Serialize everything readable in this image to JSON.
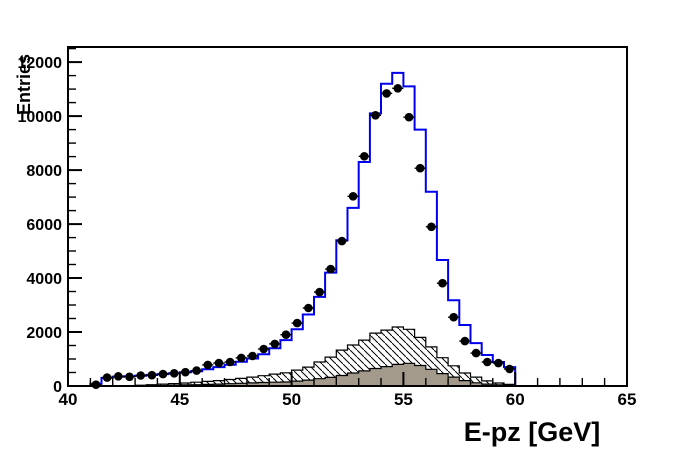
{
  "page": {
    "background": "#ffffff"
  },
  "chart_data": {
    "type": "histogram",
    "title": "",
    "xlabel": "E-pz [GeV]",
    "ylabel": "Entries",
    "xlim": [
      40,
      65
    ],
    "ylim": [
      0,
      12560
    ],
    "xticks": [
      40,
      45,
      50,
      55,
      60,
      65
    ],
    "x_minor_step": 1,
    "yticks": [
      0,
      2000,
      4000,
      6000,
      8000,
      10000,
      12000
    ],
    "y_minor_step": 500,
    "grid": false,
    "legend": "none",
    "bins": {
      "start": 41.0,
      "width": 0.5,
      "count": 38
    },
    "colors": {
      "mc_line": "#0000ee",
      "hatch_line": "#000000",
      "gray_fill": "#a39a8c",
      "marker": "#000000",
      "frame": "#000000"
    },
    "series": [
      {
        "name": "background-hatched",
        "type": "step-filled",
        "fill": "hatch-diagonal",
        "line_color": "#000000",
        "values": [
          0,
          0,
          0,
          0,
          30,
          50,
          70,
          90,
          110,
          140,
          170,
          200,
          240,
          280,
          330,
          380,
          440,
          490,
          590,
          700,
          890,
          1070,
          1330,
          1520,
          1700,
          1960,
          2070,
          2185,
          2100,
          1800,
          1450,
          1050,
          750,
          480,
          330,
          190,
          110,
          60
        ]
      },
      {
        "name": "background-solid-gray",
        "type": "step-filled",
        "fill": "#a39a8c",
        "line_color": "#000000",
        "values": [
          0,
          0,
          0,
          0,
          0,
          0,
          20,
          30,
          40,
          50,
          60,
          70,
          85,
          100,
          115,
          130,
          140,
          150,
          180,
          220,
          270,
          320,
          390,
          480,
          560,
          650,
          720,
          800,
          840,
          760,
          620,
          460,
          330,
          200,
          120,
          70,
          40,
          20
        ]
      },
      {
        "name": "mc-total-line",
        "type": "step-line",
        "line_color": "#0000ee",
        "line_width": 2,
        "values": [
          80,
          300,
          340,
          360,
          380,
          410,
          440,
          470,
          510,
          550,
          620,
          700,
          790,
          900,
          1020,
          1180,
          1400,
          1700,
          2100,
          2650,
          3300,
          4200,
          5400,
          6600,
          8300,
          10100,
          11200,
          11600,
          11100,
          9500,
          7200,
          4670,
          3180,
          2260,
          1590,
          1150,
          890,
          700
        ]
      },
      {
        "name": "data-points",
        "type": "markers",
        "marker": "filled-circle",
        "color": "#000000",
        "values": [
          50,
          310,
          360,
          340,
          390,
          400,
          440,
          470,
          510,
          570,
          780,
          850,
          890,
          1040,
          1110,
          1370,
          1560,
          1900,
          2330,
          2890,
          3480,
          4330,
          5370,
          7030,
          8510,
          10030,
          10840,
          11030,
          9960,
          8070,
          5900,
          3810,
          2550,
          1665,
          1220,
          890,
          850,
          630
        ]
      }
    ]
  }
}
